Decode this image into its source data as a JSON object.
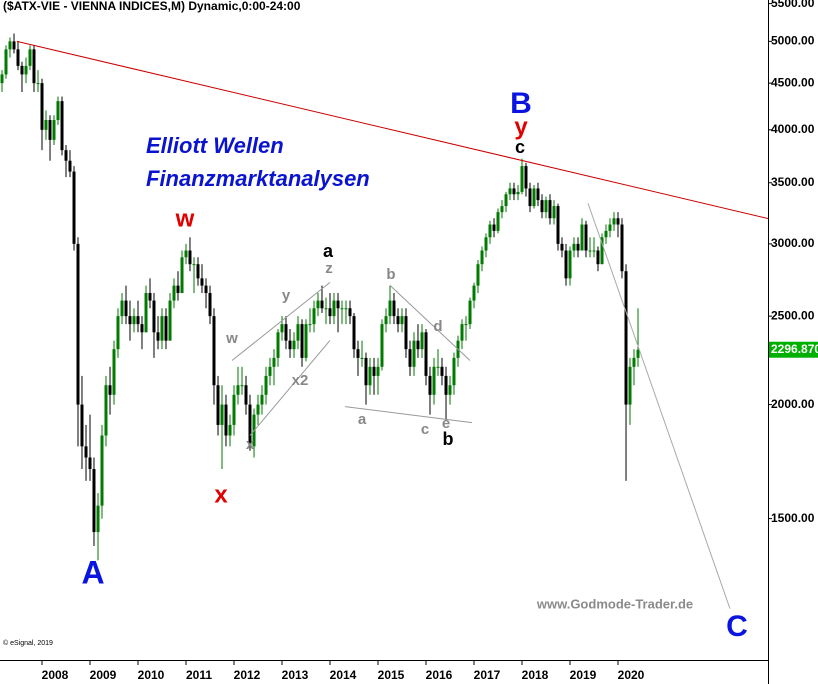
{
  "chart_data": {
    "type": "candlestick",
    "title": "($ATX-VIE - VIENNA INDICES,M) Dynamic,0:00-24:00",
    "log_scale": true,
    "grid": false,
    "up_color": "#007a00",
    "down_color": "#000000",
    "ylim": [
      1050,
      5550
    ],
    "yticks": [
      {
        "value": 5500,
        "label": "5500.00"
      },
      {
        "value": 5000,
        "label": "5000.00"
      },
      {
        "value": 4500,
        "label": "4500.00"
      },
      {
        "value": 4000,
        "label": "4000.00"
      },
      {
        "value": 3500,
        "label": "3500.00"
      },
      {
        "value": 3000,
        "label": "3000.00"
      },
      {
        "value": 2500,
        "label": "2500.00"
      },
      {
        "value": 2000,
        "label": "2000.00"
      },
      {
        "value": 1500,
        "label": "1500.00"
      }
    ],
    "xlim": [
      2007.125,
      2023.125
    ],
    "xticks": [
      2008,
      2009,
      2010,
      2011,
      2012,
      2013,
      2014,
      2015,
      2016,
      2017,
      2018,
      2019,
      2020
    ],
    "last_value": {
      "value": 2296.87,
      "label": "2296.870",
      "color": "#00b000"
    },
    "x": [
      2007.167,
      2007.25,
      2007.333,
      2007.417,
      2007.5,
      2007.583,
      2007.667,
      2007.75,
      2007.833,
      2007.917,
      2008,
      2008.083,
      2008.167,
      2008.25,
      2008.333,
      2008.417,
      2008.5,
      2008.583,
      2008.667,
      2008.75,
      2008.833,
      2008.917,
      2009,
      2009.083,
      2009.167,
      2009.25,
      2009.333,
      2009.417,
      2009.5,
      2009.583,
      2009.667,
      2009.75,
      2009.833,
      2009.917,
      2010,
      2010.083,
      2010.167,
      2010.25,
      2010.333,
      2010.417,
      2010.5,
      2010.583,
      2010.667,
      2010.75,
      2010.833,
      2010.917,
      2011,
      2011.083,
      2011.167,
      2011.25,
      2011.333,
      2011.417,
      2011.5,
      2011.583,
      2011.667,
      2011.75,
      2011.833,
      2011.917,
      2012,
      2012.083,
      2012.167,
      2012.25,
      2012.333,
      2012.417,
      2012.5,
      2012.583,
      2012.667,
      2012.75,
      2012.833,
      2012.917,
      2013,
      2013.083,
      2013.167,
      2013.25,
      2013.333,
      2013.417,
      2013.5,
      2013.583,
      2013.667,
      2013.75,
      2013.833,
      2013.917,
      2014,
      2014.083,
      2014.167,
      2014.25,
      2014.333,
      2014.417,
      2014.5,
      2014.583,
      2014.667,
      2014.75,
      2014.833,
      2014.917,
      2015,
      2015.083,
      2015.167,
      2015.25,
      2015.333,
      2015.417,
      2015.5,
      2015.583,
      2015.667,
      2015.75,
      2015.833,
      2015.917,
      2016,
      2016.083,
      2016.167,
      2016.25,
      2016.333,
      2016.417,
      2016.5,
      2016.583,
      2016.667,
      2016.75,
      2016.833,
      2016.917,
      2017,
      2017.083,
      2017.167,
      2017.25,
      2017.333,
      2017.417,
      2017.5,
      2017.583,
      2017.667,
      2017.75,
      2017.833,
      2017.917,
      2018,
      2018.083,
      2018.167,
      2018.25,
      2018.333,
      2018.417,
      2018.5,
      2018.583,
      2018.667,
      2018.75,
      2018.833,
      2018.917,
      2019,
      2019.083,
      2019.167,
      2019.25,
      2019.333,
      2019.417,
      2019.5,
      2019.583,
      2019.667,
      2019.75,
      2019.833,
      2019.917,
      2020,
      2020.083,
      2020.167,
      2020.25,
      2020.333,
      2020.417
    ],
    "candles": [
      [
        4500,
        4650,
        4400,
        4600
      ],
      [
        4600,
        4950,
        4550,
        4900
      ],
      [
        4900,
        5050,
        4800,
        5000
      ],
      [
        5000,
        5100,
        4850,
        4900
      ],
      [
        4900,
        5000,
        4650,
        4700
      ],
      [
        4700,
        4750,
        4400,
        4600
      ],
      [
        4600,
        4800,
        4500,
        4700
      ],
      [
        4700,
        4950,
        4650,
        4900
      ],
      [
        4900,
        4950,
        4400,
        4500
      ],
      [
        4500,
        4650,
        4400,
        4500
      ],
      [
        4500,
        4550,
        3800,
        4000
      ],
      [
        4000,
        4200,
        3900,
        4100
      ],
      [
        4100,
        4150,
        3700,
        3900
      ],
      [
        3900,
        4150,
        3850,
        4100
      ],
      [
        4100,
        4350,
        4050,
        4300
      ],
      [
        4300,
        4350,
        3750,
        3800
      ],
      [
        3800,
        3850,
        3550,
        3700
      ],
      [
        3700,
        3800,
        3550,
        3600
      ],
      [
        3600,
        3650,
        2950,
        3000
      ],
      [
        3000,
        3050,
        1800,
        2000
      ],
      [
        2000,
        2150,
        1700,
        1800
      ],
      [
        1800,
        1900,
        1650,
        1750
      ],
      [
        1750,
        1950,
        1650,
        1700
      ],
      [
        1700,
        1750,
        1400,
        1450
      ],
      [
        1450,
        1600,
        1350,
        1550
      ],
      [
        1550,
        1900,
        1500,
        1850
      ],
      [
        1850,
        2150,
        1800,
        2100
      ],
      [
        2100,
        2200,
        1950,
        2050
      ],
      [
        2050,
        2350,
        2000,
        2300
      ],
      [
        2300,
        2550,
        2250,
        2500
      ],
      [
        2500,
        2650,
        2450,
        2600
      ],
      [
        2600,
        2700,
        2450,
        2500
      ],
      [
        2500,
        2600,
        2350,
        2450
      ],
      [
        2450,
        2550,
        2400,
        2500
      ],
      [
        2500,
        2600,
        2400,
        2450
      ],
      [
        2450,
        2500,
        2300,
        2400
      ],
      [
        2400,
        2700,
        2400,
        2650
      ],
      [
        2650,
        2750,
        2550,
        2600
      ],
      [
        2600,
        2650,
        2250,
        2400
      ],
      [
        2400,
        2500,
        2300,
        2350
      ],
      [
        2350,
        2550,
        2300,
        2500
      ],
      [
        2500,
        2550,
        2300,
        2350
      ],
      [
        2350,
        2650,
        2350,
        2600
      ],
      [
        2600,
        2750,
        2550,
        2700
      ],
      [
        2700,
        2800,
        2600,
        2650
      ],
      [
        2650,
        2950,
        2650,
        2900
      ],
      [
        2900,
        3000,
        2850,
        2950
      ],
      [
        2950,
        3050,
        2800,
        2850
      ],
      [
        2850,
        2900,
        2650,
        2850
      ],
      [
        2850,
        2900,
        2700,
        2750
      ],
      [
        2750,
        2850,
        2650,
        2700
      ],
      [
        2700,
        2750,
        2550,
        2650
      ],
      [
        2650,
        2700,
        2450,
        2500
      ],
      [
        2500,
        2550,
        2000,
        2100
      ],
      [
        2100,
        2150,
        1850,
        1900
      ],
      [
        1900,
        2100,
        1700,
        2000
      ],
      [
        2000,
        2050,
        1800,
        1850
      ],
      [
        1850,
        1950,
        1800,
        1900
      ],
      [
        1900,
        2100,
        1850,
        2050
      ],
      [
        2050,
        2200,
        2000,
        2100
      ],
      [
        2100,
        2200,
        2050,
        2100
      ],
      [
        2100,
        2150,
        1950,
        2000
      ],
      [
        2000,
        2050,
        1780,
        1800
      ],
      [
        1800,
        1980,
        1750,
        1950
      ],
      [
        1950,
        2050,
        1900,
        2000
      ],
      [
        2000,
        2100,
        1950,
        2050
      ],
      [
        2050,
        2200,
        2000,
        2150
      ],
      [
        2150,
        2250,
        2100,
        2200
      ],
      [
        2200,
        2300,
        2100,
        2250
      ],
      [
        2250,
        2420,
        2200,
        2400
      ],
      [
        2400,
        2500,
        2350,
        2450
      ],
      [
        2450,
        2500,
        2300,
        2350
      ],
      [
        2350,
        2420,
        2250,
        2300
      ],
      [
        2300,
        2400,
        2250,
        2350
      ],
      [
        2350,
        2500,
        2300,
        2450
      ],
      [
        2450,
        2480,
        2200,
        2250
      ],
      [
        2250,
        2480,
        2230,
        2450
      ],
      [
        2450,
        2550,
        2400,
        2450
      ],
      [
        2450,
        2600,
        2400,
        2550
      ],
      [
        2550,
        2650,
        2500,
        2600
      ],
      [
        2600,
        2700,
        2520,
        2550
      ],
      [
        2550,
        2620,
        2450,
        2550
      ],
      [
        2550,
        2650,
        2450,
        2500
      ],
      [
        2500,
        2650,
        2450,
        2600
      ],
      [
        2600,
        2650,
        2400,
        2550
      ],
      [
        2550,
        2600,
        2450,
        2550
      ],
      [
        2550,
        2600,
        2450,
        2550
      ],
      [
        2550,
        2600,
        2450,
        2500
      ],
      [
        2500,
        2520,
        2250,
        2300
      ],
      [
        2300,
        2350,
        2150,
        2250
      ],
      [
        2250,
        2350,
        2200,
        2250
      ],
      [
        2250,
        2280,
        2000,
        2100
      ],
      [
        2100,
        2250,
        2050,
        2200
      ],
      [
        2200,
        2250,
        2050,
        2150
      ],
      [
        2150,
        2250,
        2050,
        2200
      ],
      [
        2200,
        2480,
        2180,
        2450
      ],
      [
        2450,
        2550,
        2400,
        2500
      ],
      [
        2500,
        2700,
        2450,
        2600
      ],
      [
        2600,
        2650,
        2450,
        2500
      ],
      [
        2500,
        2550,
        2400,
        2450
      ],
      [
        2450,
        2550,
        2400,
        2500
      ],
      [
        2500,
        2550,
        2250,
        2300
      ],
      [
        2300,
        2350,
        2150,
        2200
      ],
      [
        2200,
        2400,
        2150,
        2350
      ],
      [
        2350,
        2450,
        2250,
        2300
      ],
      [
        2300,
        2450,
        2250,
        2400
      ],
      [
        2400,
        2420,
        2100,
        2150
      ],
      [
        2150,
        2200,
        1950,
        2050
      ],
      [
        2050,
        2250,
        2000,
        2200
      ],
      [
        2200,
        2300,
        2150,
        2200
      ],
      [
        2200,
        2250,
        2100,
        2150
      ],
      [
        2150,
        2200,
        1920,
        2050
      ],
      [
        2050,
        2150,
        2000,
        2100
      ],
      [
        2100,
        2280,
        2050,
        2250
      ],
      [
        2250,
        2380,
        2200,
        2350
      ],
      [
        2350,
        2480,
        2300,
        2450
      ],
      [
        2450,
        2500,
        2350,
        2450
      ],
      [
        2450,
        2620,
        2420,
        2600
      ],
      [
        2600,
        2720,
        2550,
        2700
      ],
      [
        2700,
        2880,
        2650,
        2850
      ],
      [
        2850,
        2980,
        2800,
        2950
      ],
      [
        2950,
        3080,
        2900,
        3050
      ],
      [
        3050,
        3180,
        3000,
        3150
      ],
      [
        3150,
        3200,
        3050,
        3100
      ],
      [
        3100,
        3280,
        3080,
        3250
      ],
      [
        3250,
        3350,
        3200,
        3300
      ],
      [
        3300,
        3420,
        3250,
        3400
      ],
      [
        3400,
        3500,
        3350,
        3450
      ],
      [
        3450,
        3500,
        3350,
        3400
      ],
      [
        3400,
        3480,
        3350,
        3420
      ],
      [
        3420,
        3720,
        3400,
        3650
      ],
      [
        3650,
        3680,
        3380,
        3450
      ],
      [
        3450,
        3500,
        3250,
        3300
      ],
      [
        3300,
        3480,
        3280,
        3450
      ],
      [
        3450,
        3500,
        3300,
        3350
      ],
      [
        3350,
        3400,
        3200,
        3250
      ],
      [
        3250,
        3380,
        3200,
        3350
      ],
      [
        3350,
        3400,
        3150,
        3200
      ],
      [
        3200,
        3350,
        3150,
        3300
      ],
      [
        3300,
        3320,
        2950,
        3000
      ],
      [
        3000,
        3050,
        2900,
        2950
      ],
      [
        2950,
        3000,
        2700,
        2750
      ],
      [
        2750,
        2980,
        2700,
        2950
      ],
      [
        2950,
        3050,
        2900,
        3000
      ],
      [
        3000,
        3050,
        2900,
        2950
      ],
      [
        2950,
        3200,
        2950,
        3150
      ],
      [
        3150,
        3180,
        2900,
        2950
      ],
      [
        2950,
        3050,
        2900,
        2950
      ],
      [
        2950,
        3050,
        2900,
        2950
      ],
      [
        2950,
        2980,
        2800,
        2850
      ],
      [
        2850,
        3080,
        2850,
        3050
      ],
      [
        3050,
        3150,
        3000,
        3100
      ],
      [
        3100,
        3200,
        3050,
        3150
      ],
      [
        3150,
        3250,
        3100,
        3200
      ],
      [
        3200,
        3250,
        3050,
        3150
      ],
      [
        3150,
        3200,
        2750,
        2800
      ],
      [
        2800,
        2850,
        1650,
        2000
      ],
      [
        2000,
        2250,
        1900,
        2200
      ],
      [
        2200,
        2300,
        2100,
        2250
      ],
      [
        2250,
        2550,
        2200,
        2296.87
      ]
    ],
    "lines": [
      {
        "color": "#cc0000",
        "x": [
          2007.479,
          2023.125
        ],
        "y": [
          5000,
          3198
        ]
      },
      {
        "color": "#999999",
        "x": [
          2011.958,
          2014.0
        ],
        "y": [
          2235,
          2722
        ]
      },
      {
        "color": "#999999",
        "x": [
          2012.333,
          2014.0
        ],
        "y": [
          1850,
          2351
        ]
      },
      {
        "color": "#999999",
        "x": [
          2015.25,
          2016.917
        ],
        "y": [
          2702,
          2235
        ]
      },
      {
        "color": "#999999",
        "x": [
          2014.313,
          2016.958
        ],
        "y": [
          1990,
          1911
        ]
      },
      {
        "color": "#aaaaaa",
        "x": [
          2019.375,
          2022.333
        ],
        "y": [
          3323,
          1195
        ]
      }
    ],
    "annotations": [
      {
        "text": "Elliott Wellen",
        "color": "#0a14d0"
      },
      {
        "text": "Finanzmarktanalysen",
        "color": "#0a14d0"
      },
      {
        "text": "A",
        "color": "#0a14e0"
      },
      {
        "text": "B",
        "color": "#0a14e0"
      },
      {
        "text": "C",
        "color": "#0a14e0"
      },
      {
        "text": "w",
        "color": "#e00000"
      },
      {
        "text": "x",
        "color": "#e00000"
      },
      {
        "text": "y",
        "color": "#e00000"
      },
      {
        "text": "a",
        "color": "#000000"
      },
      {
        "text": "b",
        "color": "#000000"
      },
      {
        "text": "c",
        "color": "#000000"
      },
      {
        "text": "z",
        "color": "#888888"
      },
      {
        "text": "y",
        "color": "#888888"
      },
      {
        "text": "w",
        "color": "#888888"
      },
      {
        "text": "x",
        "color": "#888888"
      },
      {
        "text": "x2",
        "color": "#888888"
      },
      {
        "text": "b",
        "color": "#888888"
      },
      {
        "text": "d",
        "color": "#888888"
      },
      {
        "text": "a",
        "color": "#888888"
      },
      {
        "text": "c",
        "color": "#888888"
      },
      {
        "text": "e",
        "color": "#888888"
      },
      {
        "text": "www.Godmode-Trader.de",
        "color": "#8a8a8a"
      },
      {
        "text": "© eSignal, 2019",
        "color": "#000000"
      }
    ]
  }
}
